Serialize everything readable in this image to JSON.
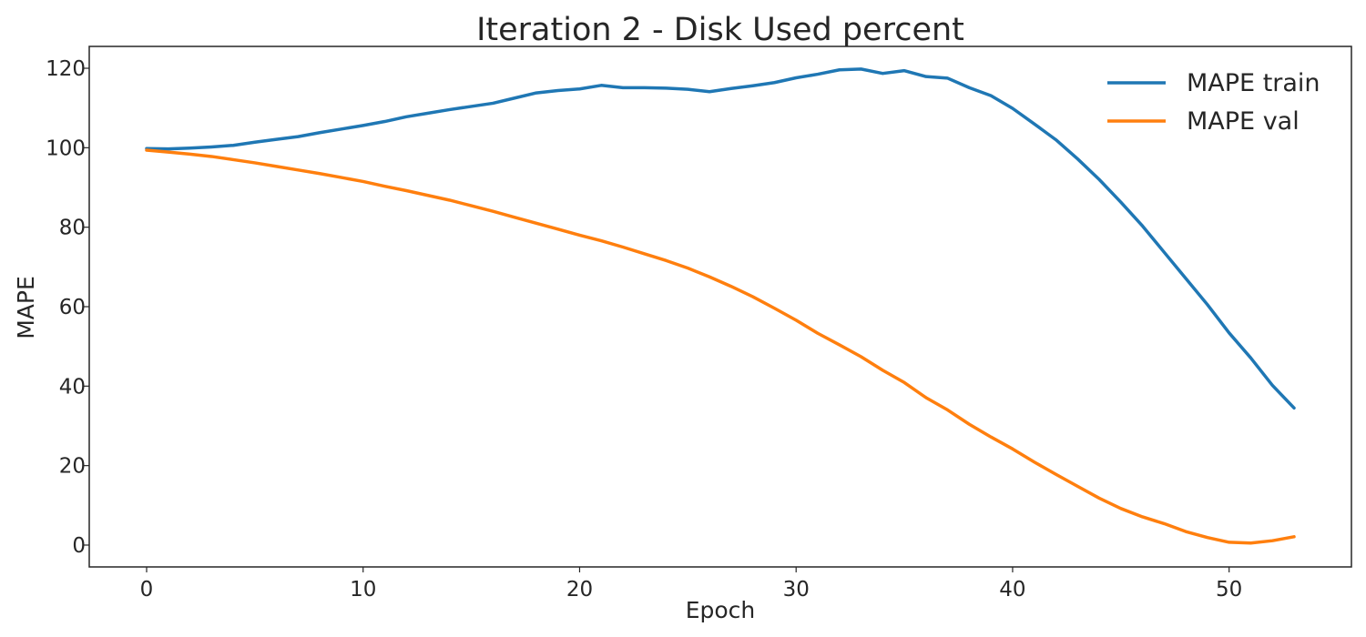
{
  "chart_data": {
    "type": "line",
    "title": "Iteration 2 - Disk Used percent",
    "xlabel": "Epoch",
    "ylabel": "MAPE",
    "xlim": [
      -2.65,
      55.65
    ],
    "ylim": [
      -5.5,
      125.5
    ],
    "x_ticks": [
      0,
      10,
      20,
      30,
      40,
      50
    ],
    "y_ticks": [
      0,
      20,
      40,
      60,
      80,
      100,
      120
    ],
    "grid": false,
    "legend_position": "top-right",
    "x": [
      0,
      1,
      2,
      3,
      4,
      5,
      6,
      7,
      8,
      9,
      10,
      11,
      12,
      13,
      14,
      15,
      16,
      17,
      18,
      19,
      20,
      21,
      22,
      23,
      24,
      25,
      26,
      27,
      28,
      29,
      30,
      31,
      32,
      33,
      34,
      35,
      36,
      37,
      38,
      39,
      40,
      41,
      42,
      43,
      44,
      45,
      46,
      47,
      48,
      49,
      50,
      51,
      52,
      53
    ],
    "series": [
      {
        "name": "MAPE train",
        "color": "#1f77b4",
        "values": [
          99.8,
          99.7,
          99.9,
          100.2,
          100.6,
          101.4,
          102.1,
          102.8,
          103.8,
          104.7,
          105.6,
          106.6,
          107.8,
          108.7,
          109.6,
          110.4,
          111.2,
          112.5,
          113.8,
          114.4,
          114.8,
          115.7,
          115.1,
          115.1,
          115.0,
          114.7,
          114.1,
          114.9,
          115.6,
          116.4,
          117.6,
          118.5,
          119.6,
          119.8,
          118.7,
          119.4,
          117.9,
          117.5,
          115.1,
          113.1,
          109.9,
          106.0,
          102.0,
          97.2,
          92.0,
          86.3,
          80.3,
          73.7,
          67.1,
          60.5,
          53.4,
          47.1,
          40.2,
          34.5
        ]
      },
      {
        "name": "MAPE val",
        "color": "#ff7f0e",
        "values": [
          99.4,
          98.9,
          98.4,
          97.8,
          97.0,
          96.2,
          95.3,
          94.4,
          93.5,
          92.5,
          91.5,
          90.3,
          89.2,
          88.0,
          86.8,
          85.4,
          84.0,
          82.5,
          81.0,
          79.5,
          78.0,
          76.6,
          75.0,
          73.3,
          71.6,
          69.7,
          67.5,
          65.1,
          62.5,
          59.6,
          56.6,
          53.3,
          50.4,
          47.4,
          44.0,
          40.9,
          37.1,
          34.0,
          30.4,
          27.2,
          24.2,
          20.9,
          17.8,
          14.8,
          11.8,
          9.2,
          7.1,
          5.4,
          3.4,
          1.9,
          0.7,
          0.5,
          1.1,
          2.1
        ]
      }
    ]
  }
}
